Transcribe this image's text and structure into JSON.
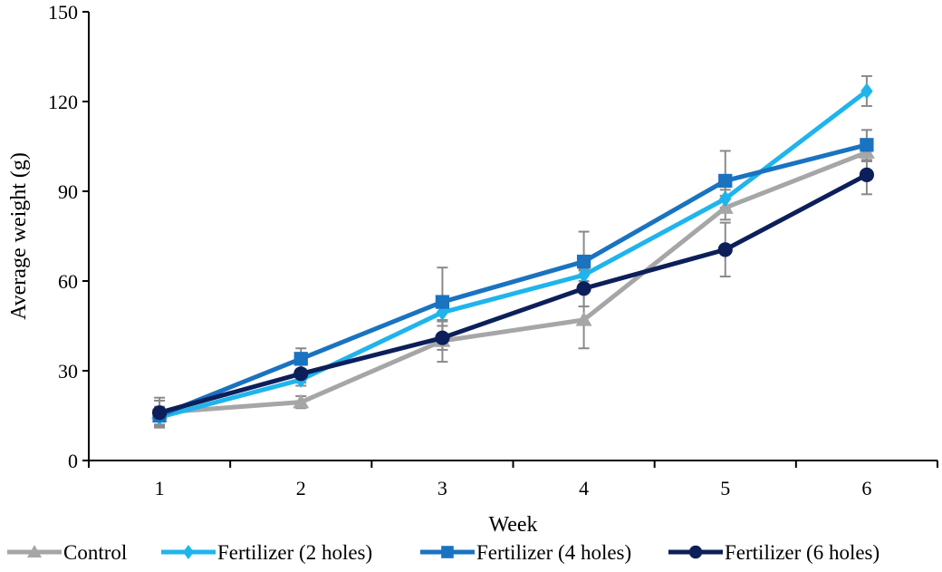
{
  "chart_data": {
    "type": "line",
    "title": "",
    "xlabel": "Week",
    "ylabel": "Average weight (g)",
    "categories": [
      "1",
      "2",
      "3",
      "4",
      "5",
      "6"
    ],
    "ylim": [
      0,
      150
    ],
    "yticks": [
      "0",
      "30",
      "60",
      "90",
      "120",
      "150"
    ],
    "grid": false,
    "legend_position": "bottom",
    "series": [
      {
        "name": "Control",
        "color": "#a6a6a6",
        "marker": "triangle",
        "values": [
          16,
          19.5,
          40,
          47,
          84.5,
          103
        ],
        "error": [
          5,
          2,
          7,
          9.5,
          4,
          3
        ]
      },
      {
        "name": "Fertilizer (2 holes)",
        "color": "#1fb4ec",
        "marker": "diamond",
        "values": [
          14.5,
          27,
          49.5,
          62,
          87.5,
          123.5
        ],
        "error": [
          3,
          2,
          3,
          2,
          3,
          5
        ]
      },
      {
        "name": "Fertilizer (4 holes)",
        "color": "#1a73c0",
        "marker": "square",
        "values": [
          15,
          34,
          53,
          66.5,
          93.5,
          105.5
        ],
        "error": [
          3,
          3.5,
          11.5,
          10,
          10,
          5
        ]
      },
      {
        "name": "Fertilizer (6 holes)",
        "color": "#0c1f5a",
        "marker": "circle",
        "values": [
          16,
          29,
          41,
          57.5,
          70.5,
          95.5
        ],
        "error": [
          4,
          3,
          4,
          6,
          9,
          6.5
        ]
      }
    ]
  }
}
